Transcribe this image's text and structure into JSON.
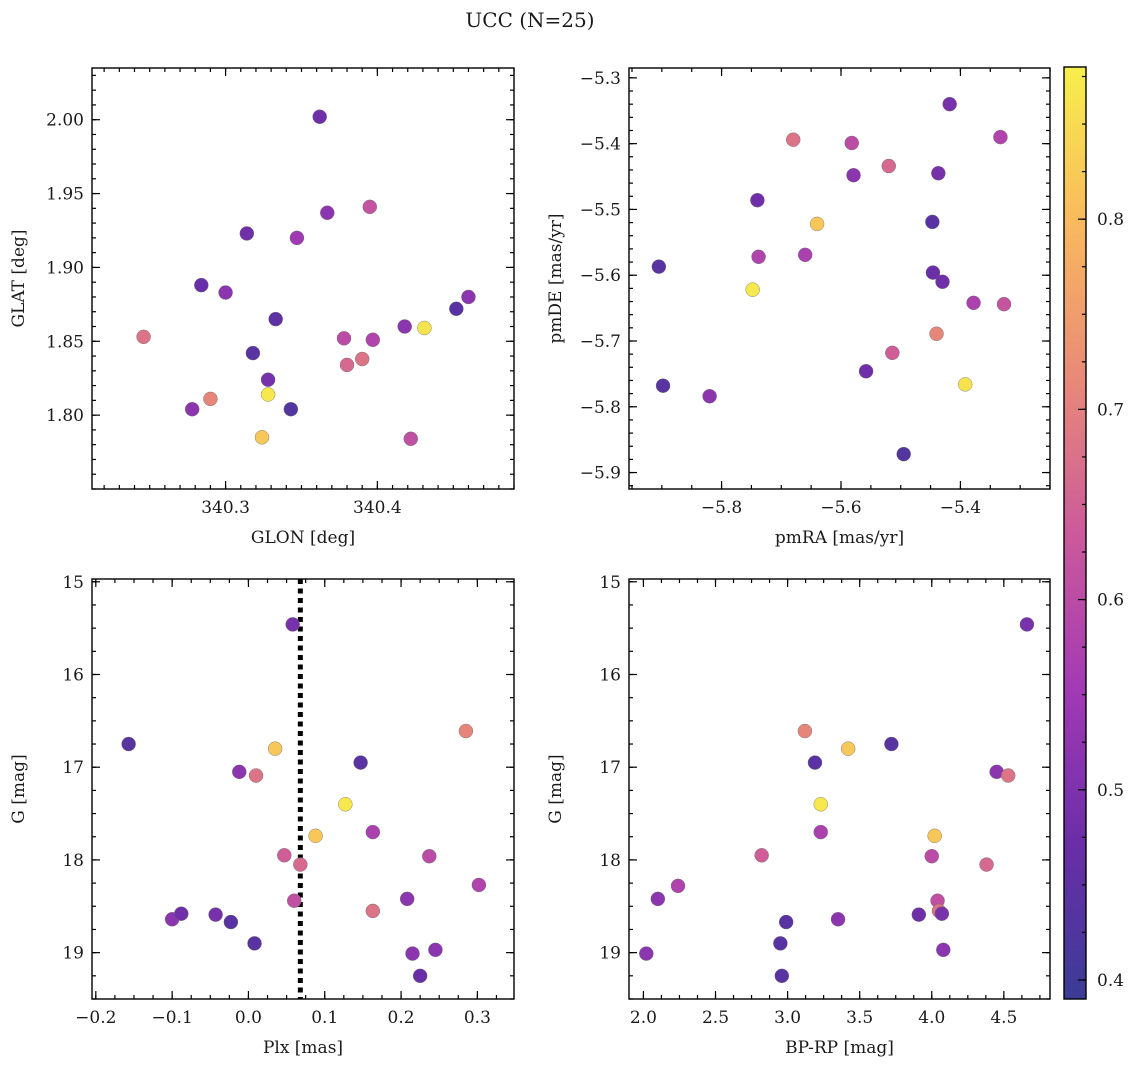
{
  "title": "UCC (N=25)",
  "chart_data": [
    {
      "type": "scatter",
      "xlabel": "GLON [deg]",
      "ylabel": "GLAT [deg]",
      "xlim": [
        340.212,
        340.49
      ],
      "ylim": [
        1.75,
        2.035
      ],
      "xticks": [
        340.3,
        340.4
      ],
      "xtick_labels": [
        "340.3",
        "340.4"
      ],
      "yticks": [
        1.8,
        1.85,
        1.9,
        1.95,
        2.0
      ],
      "ytick_labels": [
        "1.80",
        "1.85",
        "1.90",
        "1.95",
        "2.00"
      ],
      "points": [
        {
          "x": 340.246,
          "y": 1.853,
          "c": 0.68
        },
        {
          "x": 340.278,
          "y": 1.804,
          "c": 0.52
        },
        {
          "x": 340.284,
          "y": 1.888,
          "c": 0.47
        },
        {
          "x": 340.29,
          "y": 1.811,
          "c": 0.71
        },
        {
          "x": 340.3,
          "y": 1.883,
          "c": 0.52
        },
        {
          "x": 340.314,
          "y": 1.923,
          "c": 0.48
        },
        {
          "x": 340.318,
          "y": 1.842,
          "c": 0.44
        },
        {
          "x": 340.324,
          "y": 1.785,
          "c": 0.82
        },
        {
          "x": 340.328,
          "y": 1.824,
          "c": 0.49
        },
        {
          "x": 340.328,
          "y": 1.814,
          "c": 0.87
        },
        {
          "x": 340.333,
          "y": 1.865,
          "c": 0.45
        },
        {
          "x": 340.343,
          "y": 1.804,
          "c": 0.43
        },
        {
          "x": 340.347,
          "y": 1.92,
          "c": 0.55
        },
        {
          "x": 340.362,
          "y": 2.002,
          "c": 0.48
        },
        {
          "x": 340.367,
          "y": 1.937,
          "c": 0.52
        },
        {
          "x": 340.378,
          "y": 1.852,
          "c": 0.6
        },
        {
          "x": 340.38,
          "y": 1.834,
          "c": 0.66
        },
        {
          "x": 340.39,
          "y": 1.838,
          "c": 0.68
        },
        {
          "x": 340.395,
          "y": 1.941,
          "c": 0.62
        },
        {
          "x": 340.397,
          "y": 1.851,
          "c": 0.58
        },
        {
          "x": 340.418,
          "y": 1.86,
          "c": 0.52
        },
        {
          "x": 340.422,
          "y": 1.784,
          "c": 0.61
        },
        {
          "x": 340.431,
          "y": 1.859,
          "c": 0.86
        },
        {
          "x": 340.452,
          "y": 1.872,
          "c": 0.44
        },
        {
          "x": 340.46,
          "y": 1.88,
          "c": 0.52
        }
      ]
    },
    {
      "type": "scatter",
      "xlabel": "pmRA [mas/yr]",
      "ylabel": "pmDE [mas/yr]",
      "xlim": [
        -5.955,
        -5.25
      ],
      "ylim": [
        -5.925,
        -5.285
      ],
      "xticks": [
        -5.8,
        -5.6,
        -5.4
      ],
      "xtick_labels": [
        "−5.8",
        "−5.6",
        "−5.4"
      ],
      "yticks": [
        -5.9,
        -5.8,
        -5.7,
        -5.6,
        -5.5,
        -5.4,
        -5.3
      ],
      "ytick_labels": [
        "−5.9",
        "−5.8",
        "−5.7",
        "−5.6",
        "−5.5",
        "−5.4",
        "−5.3"
      ],
      "points": [
        {
          "x": -5.905,
          "y": -5.587,
          "c": 0.44
        },
        {
          "x": -5.898,
          "y": -5.768,
          "c": 0.44
        },
        {
          "x": -5.82,
          "y": -5.784,
          "c": 0.52
        },
        {
          "x": -5.748,
          "y": -5.622,
          "c": 0.87
        },
        {
          "x": -5.74,
          "y": -5.486,
          "c": 0.48
        },
        {
          "x": -5.738,
          "y": -5.572,
          "c": 0.58
        },
        {
          "x": -5.68,
          "y": -5.394,
          "c": 0.68
        },
        {
          "x": -5.66,
          "y": -5.569,
          "c": 0.57
        },
        {
          "x": -5.64,
          "y": -5.522,
          "c": 0.82
        },
        {
          "x": -5.582,
          "y": -5.399,
          "c": 0.6
        },
        {
          "x": -5.579,
          "y": -5.448,
          "c": 0.52
        },
        {
          "x": -5.558,
          "y": -5.746,
          "c": 0.48
        },
        {
          "x": -5.52,
          "y": -5.434,
          "c": 0.66
        },
        {
          "x": -5.514,
          "y": -5.718,
          "c": 0.64
        },
        {
          "x": -5.495,
          "y": -5.872,
          "c": 0.43
        },
        {
          "x": -5.447,
          "y": -5.519,
          "c": 0.44
        },
        {
          "x": -5.446,
          "y": -5.596,
          "c": 0.47
        },
        {
          "x": -5.44,
          "y": -5.689,
          "c": 0.71
        },
        {
          "x": -5.437,
          "y": -5.445,
          "c": 0.49
        },
        {
          "x": -5.43,
          "y": -5.61,
          "c": 0.48
        },
        {
          "x": -5.418,
          "y": -5.34,
          "c": 0.49
        },
        {
          "x": -5.392,
          "y": -5.766,
          "c": 0.86
        },
        {
          "x": -5.378,
          "y": -5.642,
          "c": 0.57
        },
        {
          "x": -5.333,
          "y": -5.39,
          "c": 0.58
        },
        {
          "x": -5.327,
          "y": -5.644,
          "c": 0.62
        }
      ]
    },
    {
      "type": "scatter",
      "xlabel": "Plx [mas]",
      "ylabel": "G [mag]",
      "xlim": [
        -0.205,
        0.348
      ],
      "ylim": [
        19.5,
        14.97
      ],
      "y_inverted": true,
      "xticks": [
        -0.2,
        -0.1,
        0.0,
        0.1,
        0.2,
        0.3
      ],
      "xtick_labels": [
        "−0.2",
        "−0.1",
        "0.0",
        "0.1",
        "0.2",
        "0.3"
      ],
      "yticks": [
        15,
        16,
        17,
        18,
        19
      ],
      "ytick_labels": [
        "15",
        "16",
        "17",
        "18",
        "19"
      ],
      "vline": {
        "x": 0.068,
        "style": "dotted",
        "color": "#000000"
      },
      "points": [
        {
          "x": -0.157,
          "y": 16.75,
          "c": 0.44
        },
        {
          "x": -0.1,
          "y": 18.64,
          "c": 0.52
        },
        {
          "x": -0.088,
          "y": 18.58,
          "c": 0.48
        },
        {
          "x": -0.043,
          "y": 18.59,
          "c": 0.49
        },
        {
          "x": -0.023,
          "y": 18.67,
          "c": 0.44
        },
        {
          "x": -0.012,
          "y": 17.05,
          "c": 0.52
        },
        {
          "x": 0.008,
          "y": 18.9,
          "c": 0.44
        },
        {
          "x": 0.01,
          "y": 17.09,
          "c": 0.68
        },
        {
          "x": 0.035,
          "y": 16.8,
          "c": 0.82
        },
        {
          "x": 0.047,
          "y": 17.95,
          "c": 0.64
        },
        {
          "x": 0.058,
          "y": 15.46,
          "c": 0.49
        },
        {
          "x": 0.06,
          "y": 18.44,
          "c": 0.61
        },
        {
          "x": 0.068,
          "y": 18.05,
          "c": 0.66
        },
        {
          "x": 0.088,
          "y": 17.74,
          "c": 0.82
        },
        {
          "x": 0.127,
          "y": 17.4,
          "c": 0.87
        },
        {
          "x": 0.147,
          "y": 16.95,
          "c": 0.44
        },
        {
          "x": 0.163,
          "y": 17.7,
          "c": 0.57
        },
        {
          "x": 0.163,
          "y": 18.55,
          "c": 0.68
        },
        {
          "x": 0.208,
          "y": 18.42,
          "c": 0.52
        },
        {
          "x": 0.215,
          "y": 19.01,
          "c": 0.52
        },
        {
          "x": 0.225,
          "y": 19.25,
          "c": 0.47
        },
        {
          "x": 0.237,
          "y": 17.96,
          "c": 0.6
        },
        {
          "x": 0.245,
          "y": 18.97,
          "c": 0.52
        },
        {
          "x": 0.285,
          "y": 16.61,
          "c": 0.71
        },
        {
          "x": 0.302,
          "y": 18.27,
          "c": 0.58
        }
      ]
    },
    {
      "type": "scatter",
      "xlabel": "BP-RP [mag]",
      "ylabel": "G [mag]",
      "xlim": [
        1.9,
        4.82
      ],
      "ylim": [
        19.5,
        14.97
      ],
      "y_inverted": true,
      "xticks": [
        2.0,
        2.5,
        3.0,
        3.5,
        4.0,
        4.5
      ],
      "xtick_labels": [
        "2.0",
        "2.5",
        "3.0",
        "3.5",
        "4.0",
        "4.5"
      ],
      "yticks": [
        15,
        16,
        17,
        18,
        19
      ],
      "ytick_labels": [
        "15",
        "16",
        "17",
        "18",
        "19"
      ],
      "points": [
        {
          "x": 2.02,
          "y": 19.01,
          "c": 0.52
        },
        {
          "x": 2.1,
          "y": 18.42,
          "c": 0.52
        },
        {
          "x": 2.24,
          "y": 18.28,
          "c": 0.58
        },
        {
          "x": 2.82,
          "y": 17.95,
          "c": 0.64
        },
        {
          "x": 2.95,
          "y": 18.9,
          "c": 0.44
        },
        {
          "x": 2.96,
          "y": 19.25,
          "c": 0.44
        },
        {
          "x": 2.99,
          "y": 18.67,
          "c": 0.44
        },
        {
          "x": 3.12,
          "y": 16.61,
          "c": 0.71
        },
        {
          "x": 3.19,
          "y": 16.95,
          "c": 0.44
        },
        {
          "x": 3.23,
          "y": 17.4,
          "c": 0.87
        },
        {
          "x": 3.23,
          "y": 17.7,
          "c": 0.57
        },
        {
          "x": 3.35,
          "y": 18.64,
          "c": 0.52
        },
        {
          "x": 3.42,
          "y": 16.8,
          "c": 0.82
        },
        {
          "x": 3.72,
          "y": 16.75,
          "c": 0.44
        },
        {
          "x": 3.91,
          "y": 18.59,
          "c": 0.48
        },
        {
          "x": 4.0,
          "y": 17.96,
          "c": 0.6
        },
        {
          "x": 4.02,
          "y": 17.74,
          "c": 0.82
        },
        {
          "x": 4.04,
          "y": 18.44,
          "c": 0.61
        },
        {
          "x": 4.05,
          "y": 18.55,
          "c": 0.68
        },
        {
          "x": 4.07,
          "y": 18.58,
          "c": 0.49
        },
        {
          "x": 4.08,
          "y": 18.97,
          "c": 0.52
        },
        {
          "x": 4.38,
          "y": 18.05,
          "c": 0.66
        },
        {
          "x": 4.45,
          "y": 17.05,
          "c": 0.52
        },
        {
          "x": 4.53,
          "y": 17.09,
          "c": 0.68
        },
        {
          "x": 4.66,
          "y": 15.46,
          "c": 0.49
        }
      ]
    }
  ],
  "colorbar": {
    "cmap": "plasma",
    "range": [
      0.39,
      0.88
    ],
    "ticks": [
      0.4,
      0.5,
      0.6,
      0.7,
      0.8
    ],
    "tick_labels": [
      "0.4",
      "0.5",
      "0.6",
      "0.7",
      "0.8"
    ],
    "colors": [
      "#3b3c95",
      "#6a2ea8",
      "#a23ab4",
      "#cc5a9a",
      "#e88a78",
      "#f9b95e",
      "#f7ef4b"
    ]
  }
}
